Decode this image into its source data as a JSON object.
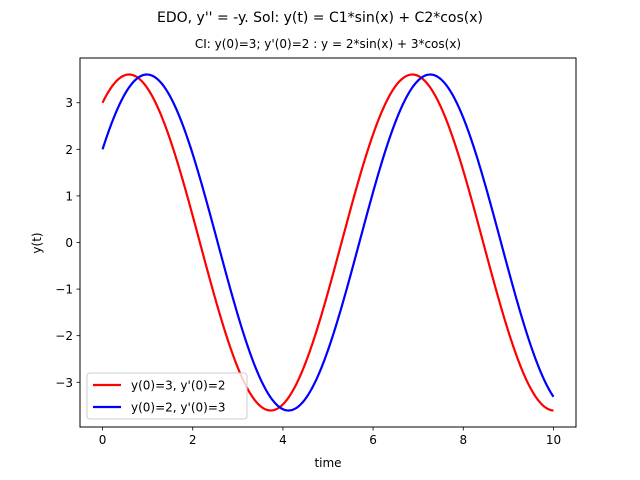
{
  "chart_data": {
    "type": "line",
    "title": "EDO, y'' = -y. Sol: y(t) = C1*sin(x) + C2*cos(x)",
    "subtitle": "CI: y(0)=3; y'(0)=2 : y = 2*sin(x) + 3*cos(x)",
    "xlabel": "time",
    "ylabel": "y(t)",
    "xlim": [
      -0.5,
      10.5
    ],
    "ylim": [
      -3.96,
      3.96
    ],
    "x_ticks": [
      0,
      2,
      4,
      6,
      8,
      10
    ],
    "x_tick_labels": [
      "0",
      "2",
      "4",
      "6",
      "8",
      "10"
    ],
    "y_ticks": [
      -3,
      -2,
      -1,
      0,
      1,
      2,
      3
    ],
    "y_tick_labels": [
      "−3",
      "−2",
      "−1",
      "0",
      "1",
      "2",
      "3"
    ],
    "grid": false,
    "legend_position": "lower-left",
    "x_range": [
      0,
      10
    ],
    "series": [
      {
        "name": "y(0)=3, y'(0)=2",
        "color": "#ff0000",
        "c_sin": 2,
        "c_cos": 3
      },
      {
        "name": "y(0)=2, y'(0)=3",
        "color": "#0000ff",
        "c_sin": 3,
        "c_cos": 2
      }
    ]
  }
}
